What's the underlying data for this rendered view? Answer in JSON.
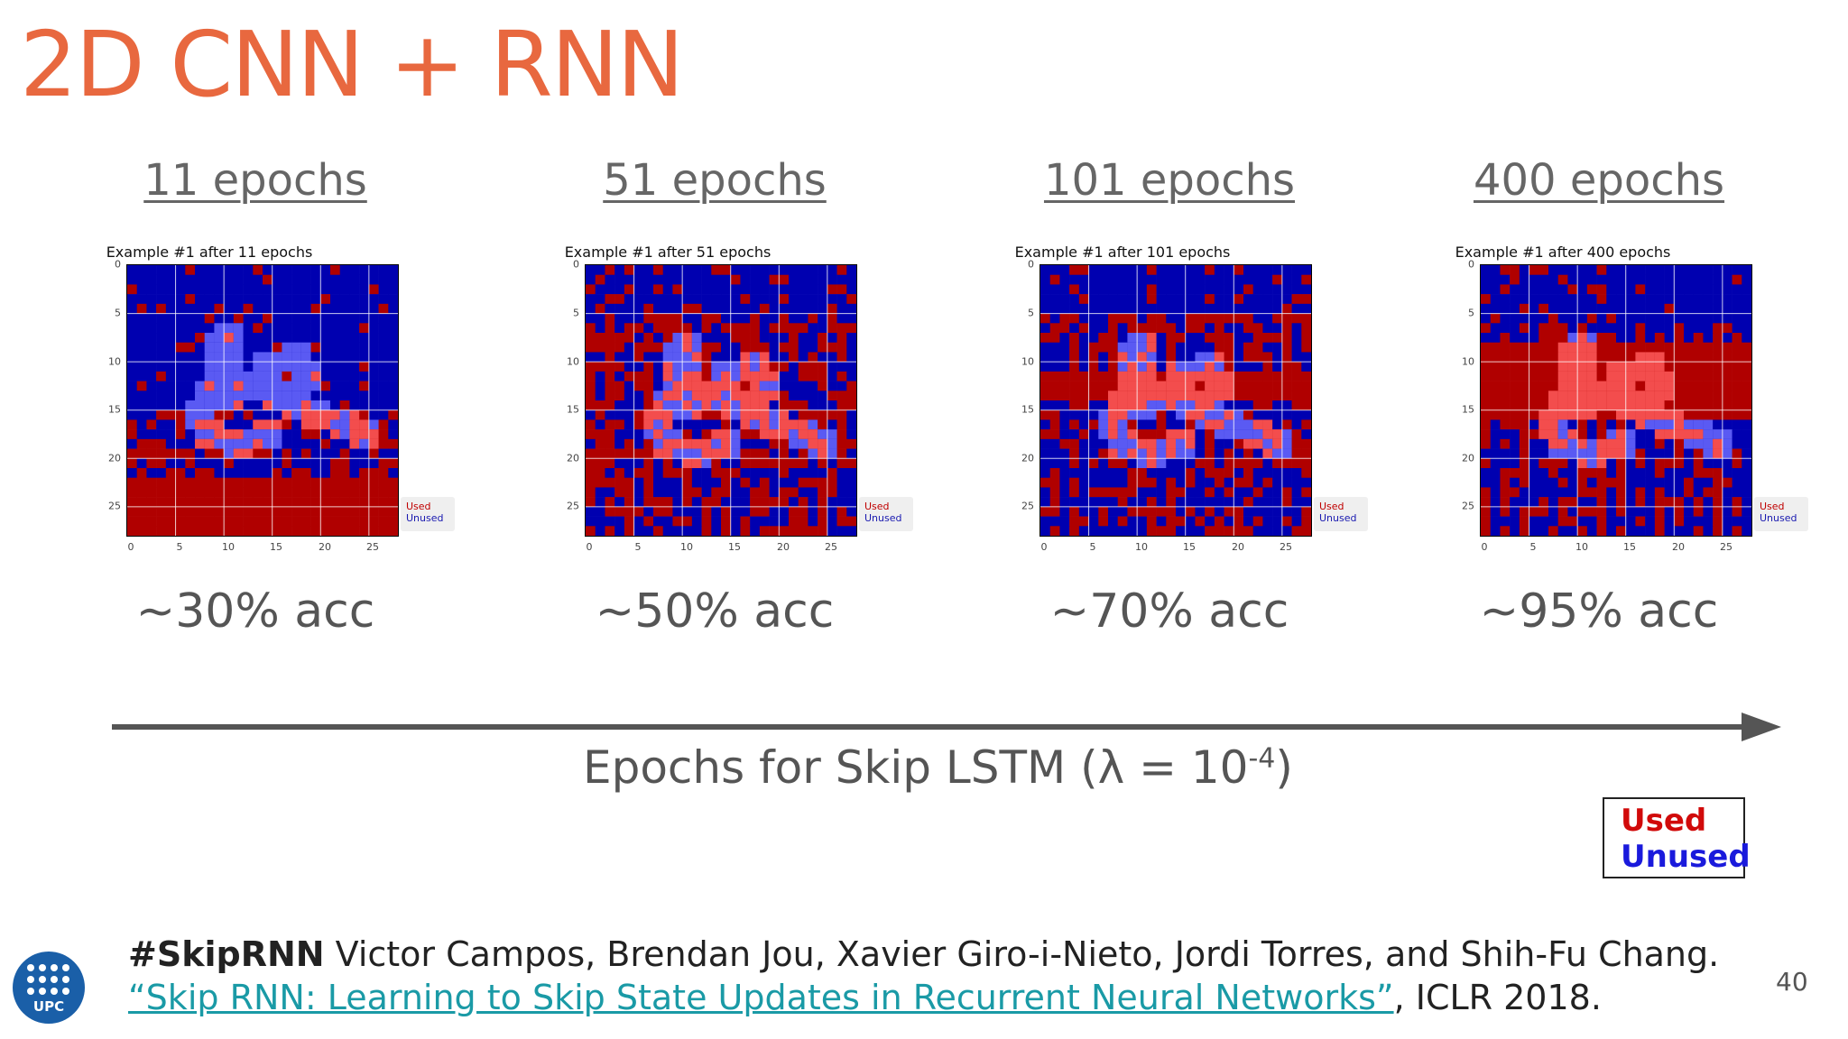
{
  "slide": {
    "title": "2D CNN + RNN",
    "page_number": "40"
  },
  "panels": [
    {
      "heading": "11 epochs",
      "plot_title": "Example #1 after 11 epochs",
      "accuracy": "~30% acc"
    },
    {
      "heading": "51 epochs",
      "plot_title": "Example #1 after 51 epochs",
      "accuracy": "~50% acc"
    },
    {
      "heading": "101 epochs",
      "plot_title": "Example #1 after 101 epochs",
      "accuracy": "~70% acc"
    },
    {
      "heading": "400 epochs",
      "plot_title": "Example #1 after 400 epochs",
      "accuracy": "~95% acc"
    }
  ],
  "plot_axis": {
    "y_ticks": [
      "0",
      "5",
      "10",
      "15",
      "20",
      "25"
    ],
    "x_ticks": [
      "0",
      "5",
      "10",
      "15",
      "20",
      "25"
    ],
    "legend_used": "Used",
    "legend_unused": "Unused"
  },
  "axis": {
    "caption_main": "Epochs for Skip LSTM (λ = 10",
    "caption_exp": "-4",
    "caption_end": ")"
  },
  "legend": {
    "used": "Used",
    "unused": "Unused"
  },
  "citation": {
    "tag": "#SkipRNN",
    "authors": " Victor Campos, Brendan Jou, Xavier Giro-i-Nieto, Jordi Torres, and Shih-Fu Chang. ",
    "link_text": "“Skip RNN: Learning to Skip State Updates in Recurrent Neural Networks”",
    "venue": ", ICLR 2018."
  },
  "logo": {
    "text": "UPC"
  },
  "colors": {
    "title": "#e8683f",
    "used": "#b00000",
    "unused": "#0000b0",
    "link": "#1a9aa6"
  }
}
